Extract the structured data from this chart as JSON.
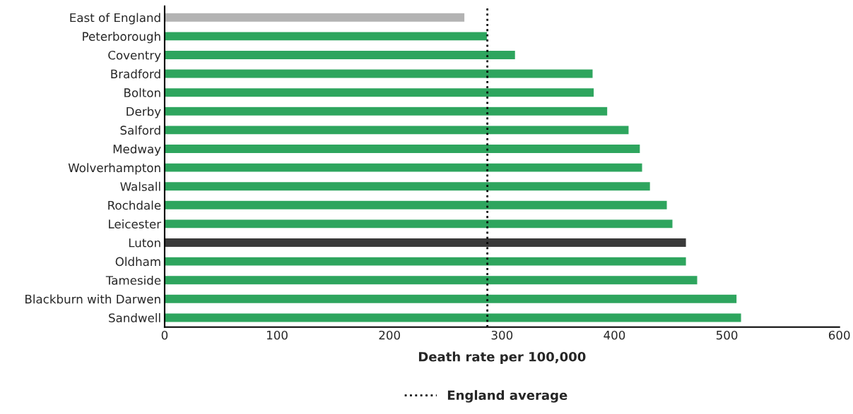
{
  "chart_data": {
    "type": "bar",
    "orientation": "horizontal",
    "xlabel": "Death rate per 100,000",
    "categories": [
      "East of England",
      "Peterborough",
      "Coventry",
      "Bradford",
      "Bolton",
      "Derby",
      "Salford",
      "Medway",
      "Wolverhampton",
      "Walsall",
      "Rochdale",
      "Leicester",
      "Luton",
      "Oldham",
      "Tameside",
      "Blackburn with Darwen",
      "Sandwell"
    ],
    "values": [
      267,
      287,
      312,
      381,
      382,
      394,
      413,
      423,
      425,
      432,
      447,
      452,
      464,
      464,
      474,
      509,
      513
    ],
    "colors": [
      "#b3b3b3",
      "#2ea55e",
      "#2ea55e",
      "#2ea55e",
      "#2ea55e",
      "#2ea55e",
      "#2ea55e",
      "#2ea55e",
      "#2ea55e",
      "#2ea55e",
      "#2ea55e",
      "#2ea55e",
      "#3a3a3a",
      "#2ea55e",
      "#2ea55e",
      "#2ea55e",
      "#2ea55e"
    ],
    "xlim": [
      0,
      600
    ],
    "xticks": [
      0,
      100,
      200,
      300,
      400,
      500,
      600
    ],
    "ref_lines": [
      {
        "axis": "x",
        "value": 287,
        "label": "England average",
        "color": "#000000",
        "line_style": "dotted"
      }
    ],
    "legend": "bottom",
    "grid": false
  }
}
